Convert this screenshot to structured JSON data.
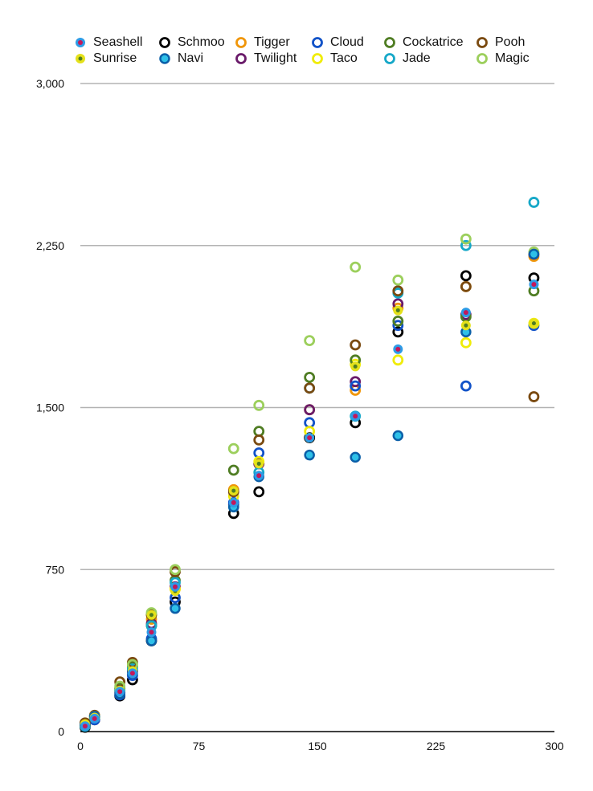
{
  "chart_data": {
    "type": "scatter",
    "title": "",
    "xlabel": "",
    "ylabel": "",
    "xlim": [
      0,
      300
    ],
    "ylim": [
      0,
      3000
    ],
    "x_ticks": [
      "0",
      "75",
      "150",
      "225",
      "300"
    ],
    "y_ticks": [
      "0",
      "750",
      "1,500",
      "2,250",
      "3,000"
    ],
    "grid": "horizontal",
    "legend_position": "top",
    "x": [
      3,
      9,
      25,
      33,
      45,
      60,
      97,
      113,
      145,
      174,
      201,
      244,
      287
    ],
    "series": [
      {
        "name": "Seashell",
        "style": "seashell",
        "color": "#2e9be6",
        "values": [
          25,
          60,
          185,
          270,
          460,
          670,
          1060,
          1185,
          1360,
          1460,
          1770,
          1940,
          2070
        ]
      },
      {
        "name": "Sunrise",
        "style": "sunrise",
        "color": "#e4e11a",
        "values": [
          35,
          65,
          190,
          280,
          540,
          650,
          1115,
          1240,
          1360,
          1690,
          1950,
          1880,
          1890
        ]
      },
      {
        "name": "Schmoo",
        "style": "ring",
        "color": "#000000",
        "values": [
          20,
          55,
          165,
          240,
          420,
          600,
          1010,
          1110,
          1360,
          1430,
          1850,
          2110,
          2100
        ]
      },
      {
        "name": "Navi",
        "style": "ring-fill",
        "color": "#1e8cdc",
        "values": [
          30,
          70,
          175,
          270,
          420,
          570,
          1040,
          1180,
          1280,
          1270,
          1370,
          1850,
          2210
        ]
      },
      {
        "name": "Tigger",
        "style": "ring",
        "color": "#f0960a",
        "values": [
          35,
          60,
          190,
          280,
          520,
          660,
          1120,
          1240,
          1490,
          1580,
          1960,
          2060,
          2200
        ]
      },
      {
        "name": "Twilight",
        "style": "ring",
        "color": "#6a1b6a",
        "values": [
          30,
          55,
          180,
          280,
          500,
          670,
          1050,
          1240,
          1490,
          1620,
          1980,
          1930,
          2210
        ]
      },
      {
        "name": "Cloud",
        "style": "ring",
        "color": "#1152c8",
        "values": [
          25,
          55,
          170,
          260,
          430,
          620,
          1060,
          1290,
          1430,
          1600,
          1880,
          1600,
          1880
        ]
      },
      {
        "name": "Taco",
        "style": "ring",
        "color": "#f0ec0a",
        "values": [
          30,
          65,
          200,
          300,
          540,
          660,
          1090,
          1250,
          1390,
          1700,
          1720,
          1800,
          1890
        ]
      },
      {
        "name": "Cockatrice",
        "style": "ring",
        "color": "#4f7d23",
        "values": [
          30,
          70,
          200,
          300,
          490,
          700,
          1210,
          1390,
          1640,
          1720,
          1900,
          1920,
          2040
        ]
      },
      {
        "name": "Jade",
        "style": "ring",
        "color": "#16a8c8",
        "values": [
          25,
          65,
          190,
          290,
          490,
          690,
          1040,
          1200,
          1590,
          1460,
          2030,
          2250,
          2450
        ]
      },
      {
        "name": "Pooh",
        "style": "ring",
        "color": "#7a4a10",
        "values": [
          40,
          75,
          230,
          320,
          540,
          740,
          1110,
          1350,
          1590,
          1790,
          2040,
          2060,
          1550
        ]
      },
      {
        "name": "Magic",
        "style": "ring",
        "color": "#9ccf5c",
        "values": [
          30,
          70,
          210,
          310,
          550,
          750,
          1310,
          1510,
          1810,
          2150,
          2090,
          2280,
          2220
        ]
      }
    ]
  }
}
